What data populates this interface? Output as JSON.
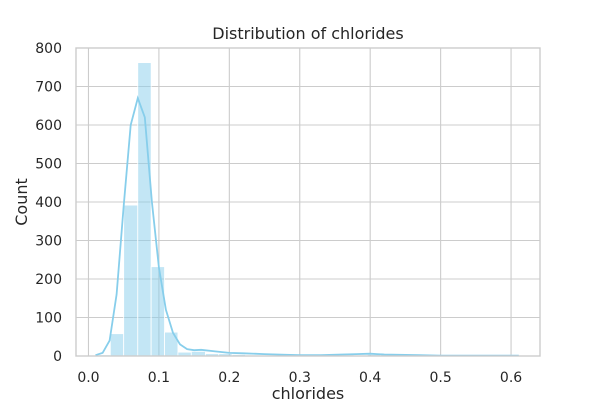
{
  "chart_data": {
    "type": "bar",
    "title": "Distribution of chlorides",
    "xlabel": "chlorides",
    "ylabel": "Count",
    "xlim": [
      -0.0177,
      0.6411
    ],
    "ylim": [
      0,
      800
    ],
    "xticks": [
      0.0,
      0.1,
      0.2,
      0.3,
      0.4,
      0.5,
      0.6
    ],
    "xtick_labels": [
      "0.0",
      "0.1",
      "0.2",
      "0.3",
      "0.4",
      "0.5",
      "0.6"
    ],
    "yticks": [
      0,
      100,
      200,
      300,
      400,
      500,
      600,
      700,
      800
    ],
    "ytick_labels": [
      "0",
      "100",
      "200",
      "300",
      "400",
      "500",
      "600",
      "700",
      "800"
    ],
    "grid": true,
    "bin_edges": [
      0.012,
      0.031,
      0.05,
      0.07,
      0.089,
      0.108,
      0.127,
      0.146,
      0.166,
      0.185,
      0.204,
      0.223,
      0.242,
      0.261,
      0.281,
      0.3,
      0.319,
      0.338,
      0.357,
      0.377,
      0.396,
      0.415,
      0.434,
      0.453,
      0.473,
      0.492,
      0.511,
      0.53,
      0.549,
      0.568,
      0.588,
      0.611
    ],
    "counts": [
      3,
      58,
      392,
      762,
      232,
      62,
      10,
      12,
      6,
      6,
      4,
      2,
      2,
      2,
      1,
      0,
      1,
      2,
      3,
      2,
      4,
      5,
      3,
      1,
      1,
      0,
      0,
      0,
      0,
      0,
      2
    ],
    "kde": {
      "x": [
        0.01,
        0.02,
        0.03,
        0.04,
        0.05,
        0.06,
        0.07,
        0.08,
        0.09,
        0.1,
        0.11,
        0.12,
        0.13,
        0.14,
        0.15,
        0.16,
        0.18,
        0.2,
        0.22,
        0.25,
        0.28,
        0.3,
        0.33,
        0.36,
        0.38,
        0.4,
        0.41,
        0.42,
        0.44,
        0.47,
        0.5,
        0.53,
        0.56,
        0.59,
        0.611
      ],
      "y": [
        2,
        8,
        40,
        160,
        390,
        600,
        670,
        620,
        400,
        230,
        120,
        60,
        30,
        18,
        15,
        16,
        12,
        8,
        7,
        5,
        3,
        2,
        2,
        4,
        5,
        6,
        5,
        4,
        3,
        2,
        1,
        1,
        1,
        1,
        1
      ]
    },
    "colors": {
      "bar": "#87ceeb",
      "line": "#87ceeb",
      "grid": "#cccccc"
    }
  }
}
